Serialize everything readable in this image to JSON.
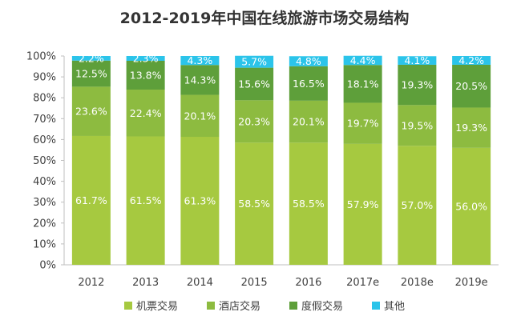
{
  "chart_data": {
    "type": "bar",
    "stacked": true,
    "title": "2012-2019年中国在线旅游市场交易结构",
    "categories": [
      "2012",
      "2013",
      "2014",
      "2015",
      "2016",
      "2017e",
      "2018e",
      "2019e"
    ],
    "ylim": [
      0,
      100
    ],
    "y_ticks": [
      "0%",
      "10%",
      "20%",
      "30%",
      "40%",
      "50%",
      "60%",
      "70%",
      "80%",
      "90%",
      "100%"
    ],
    "grid": false,
    "legend_position": "bottom",
    "series": [
      {
        "name": "机票交易",
        "color": "#a6c940",
        "values": [
          61.7,
          61.5,
          61.3,
          58.5,
          58.5,
          57.9,
          57.0,
          56.0
        ],
        "labels": [
          "61.7%",
          "61.5%",
          "61.3%",
          "58.5%",
          "58.5%",
          "57.9%",
          "57.0%",
          "56.0%"
        ]
      },
      {
        "name": "酒店交易",
        "color": "#8dbb40",
        "values": [
          23.6,
          22.4,
          20.1,
          20.3,
          20.1,
          19.7,
          19.5,
          19.3
        ],
        "labels": [
          "23.6%",
          "22.4%",
          "20.1%",
          "20.3%",
          "20.1%",
          "19.7%",
          "19.5%",
          "19.3%"
        ]
      },
      {
        "name": "度假交易",
        "color": "#5e9f3a",
        "values": [
          12.5,
          13.8,
          14.3,
          15.6,
          16.5,
          18.1,
          19.3,
          20.5
        ],
        "labels": [
          "12.5%",
          "13.8%",
          "14.3%",
          "15.6%",
          "16.5%",
          "18.1%",
          "19.3%",
          "20.5%"
        ]
      },
      {
        "name": "其他",
        "color": "#2bc4ea",
        "values": [
          2.2,
          2.3,
          4.3,
          5.7,
          4.8,
          4.4,
          4.1,
          4.2
        ],
        "labels": [
          "2.2%",
          "2.3%",
          "4.3%",
          "5.7%",
          "4.8%",
          "4.4%",
          "4.1%",
          "4.2%"
        ]
      }
    ]
  }
}
